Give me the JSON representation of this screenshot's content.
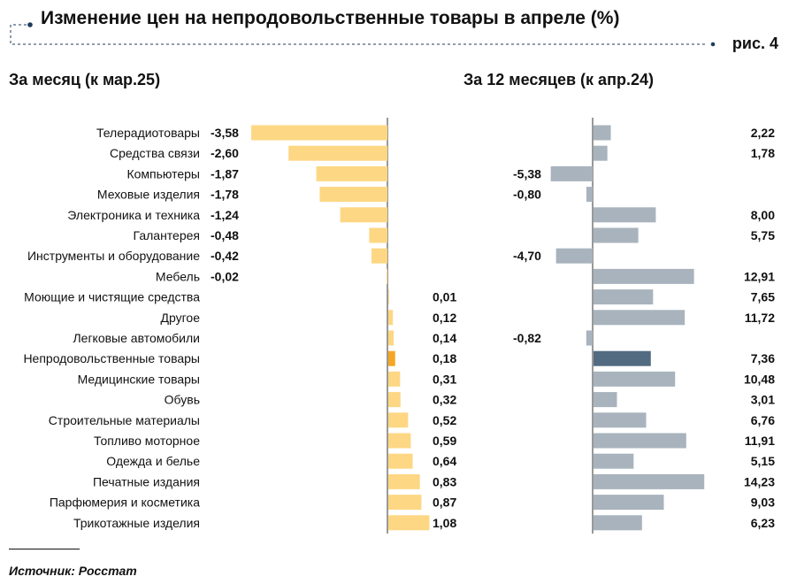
{
  "header": {
    "title": "Изменение цен на непродовольственные товары в апреле (%)",
    "figure_label": "рис. 4"
  },
  "source": "Источник: Росстат",
  "colors": {
    "monthly_bar": "#FDD783",
    "monthly_highlight": "#F5A623",
    "yearly_bar": "#A8B3BD",
    "yearly_highlight": "#536B81",
    "accent_dots": "#1F3B5C"
  },
  "chart_data": [
    {
      "type": "bar",
      "orientation": "horizontal",
      "title": "За месяц (к мар.25)",
      "categories": [
        "Телерадиотовары",
        "Средства связи",
        "Компьютеры",
        "Меховые изделия",
        "Электроника и техника",
        "Галантерея",
        "Инструменты и оборудование",
        "Мебель",
        "Моющие и чистящие средства",
        "Другое",
        "Легковые автомобили",
        "Непродовольственные товары",
        "Медицинские товары",
        "Обувь",
        "Строительные материалы",
        "Топливо моторное",
        "Одежда и белье",
        "Печатные издания",
        "Парфюмерия и косметика",
        "Трикотажные изделия"
      ],
      "values": [
        -3.58,
        -2.6,
        -1.87,
        -1.78,
        -1.24,
        -0.48,
        -0.42,
        -0.02,
        0.01,
        0.12,
        0.14,
        0.18,
        0.31,
        0.32,
        0.52,
        0.59,
        0.64,
        0.83,
        0.87,
        1.08
      ],
      "value_labels": [
        "-3,58",
        "-2,60",
        "-1,87",
        "-1,78",
        "-1,24",
        "-0,48",
        "-0,42",
        "-0,02",
        "0,01",
        "0,12",
        "0,14",
        "0,18",
        "0,31",
        "0,32",
        "0,52",
        "0,59",
        "0,64",
        "0,83",
        "0,87",
        "1,08"
      ],
      "highlight_category": "Непродовольственные товары",
      "xlim": [
        -3.58,
        1.08
      ]
    },
    {
      "type": "bar",
      "orientation": "horizontal",
      "title": "За 12 месяцев (к апр.24)",
      "categories": [
        "Телерадиотовары",
        "Средства связи",
        "Компьютеры",
        "Меховые изделия",
        "Электроника и техника",
        "Галантерея",
        "Инструменты и оборудование",
        "Мебель",
        "Моющие и чистящие средства",
        "Другое",
        "Легковые автомобили",
        "Непродовольственные товары",
        "Медицинские товары",
        "Обувь",
        "Строительные материалы",
        "Топливо моторное",
        "Одежда и белье",
        "Печатные издания",
        "Парфюмерия и косметика",
        "Трикотажные изделия"
      ],
      "values": [
        2.22,
        1.78,
        -5.38,
        -0.8,
        8.0,
        5.75,
        -4.7,
        12.91,
        7.65,
        11.72,
        -0.82,
        7.36,
        10.48,
        3.01,
        6.76,
        11.91,
        5.15,
        14.23,
        9.03,
        6.23
      ],
      "value_labels": [
        "2,22",
        "1,78",
        "-5,38",
        "-0,80",
        "8,00",
        "5,75",
        "-4,70",
        "12,91",
        "7,65",
        "11,72",
        "-0,82",
        "7,36",
        "10,48",
        "3,01",
        "6,76",
        "11,91",
        "5,15",
        "14,23",
        "9,03",
        "6,23"
      ],
      "highlight_category": "Непродовольственные товары",
      "xlim": [
        -5.38,
        14.23
      ]
    }
  ]
}
